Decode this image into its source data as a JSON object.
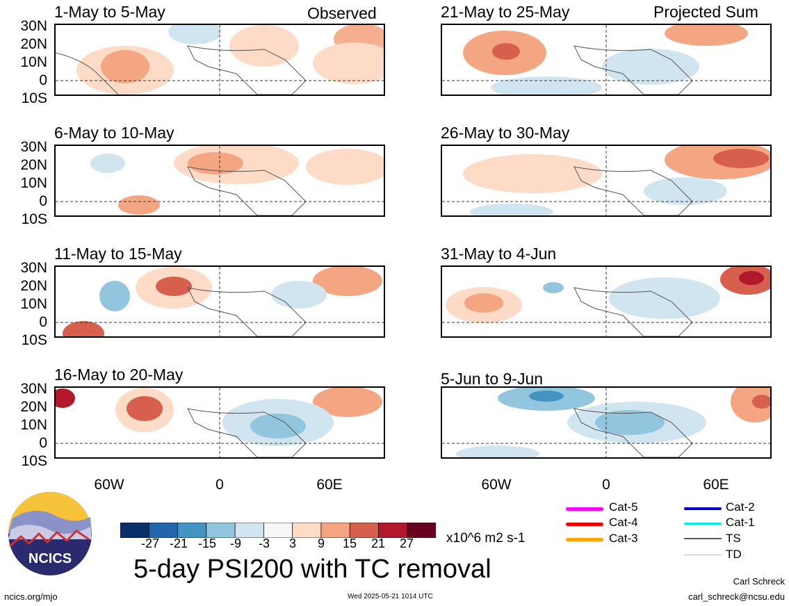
{
  "figure": {
    "title": "5-day PSI200 with TC removal",
    "units": "x10^6 m2 s-1",
    "left_column_tag": "Observed",
    "right_column_tag": "Projected Sum"
  },
  "panels_left": [
    {
      "title": "1-May to 5-May"
    },
    {
      "title": "6-May to 10-May"
    },
    {
      "title": "11-May to 15-May"
    },
    {
      "title": "16-May to 20-May"
    }
  ],
  "panels_right": [
    {
      "title": "21-May to 25-May"
    },
    {
      "title": "26-May to 30-May"
    },
    {
      "title": "31-May to 4-Jun"
    },
    {
      "title": "5-Jun to 9-Jun"
    }
  ],
  "axes": {
    "lat_labels": [
      "30N",
      "20N",
      "10N",
      "0",
      "10S"
    ],
    "lon_labels": [
      "60W",
      "0",
      "60E"
    ]
  },
  "colorbar": {
    "labels": [
      "-27",
      "-21",
      "-15",
      "-9",
      "-3",
      "3",
      "9",
      "15",
      "21",
      "27"
    ],
    "colors": [
      "#08306b",
      "#2166ac",
      "#4393c3",
      "#92c5de",
      "#d1e5f0",
      "#f7f7f7",
      "#fddbc7",
      "#f4a582",
      "#d6604d",
      "#b2182b",
      "#67001f"
    ]
  },
  "tc_legend": {
    "left": [
      {
        "label": "Cat-5",
        "color": "#ff00ff"
      },
      {
        "label": "Cat-4",
        "color": "#ee0000"
      },
      {
        "label": "Cat-3",
        "color": "#ffa500"
      }
    ],
    "right": [
      {
        "label": "Cat-2",
        "color": "#0000cc"
      },
      {
        "label": "Cat-1",
        "color": "#00eeee"
      },
      {
        "label": "TS",
        "color": "#555555"
      },
      {
        "label": "TD",
        "color": "#bbbbbb"
      }
    ]
  },
  "logo": {
    "text": "NCICS"
  },
  "footer": {
    "left": "ncics.org/mjo",
    "center": "Wed 2025-05-21 1014 UTC",
    "right_name": "Carl Schreck",
    "right_email": "carl_schreck@ncsu.edu"
  }
}
